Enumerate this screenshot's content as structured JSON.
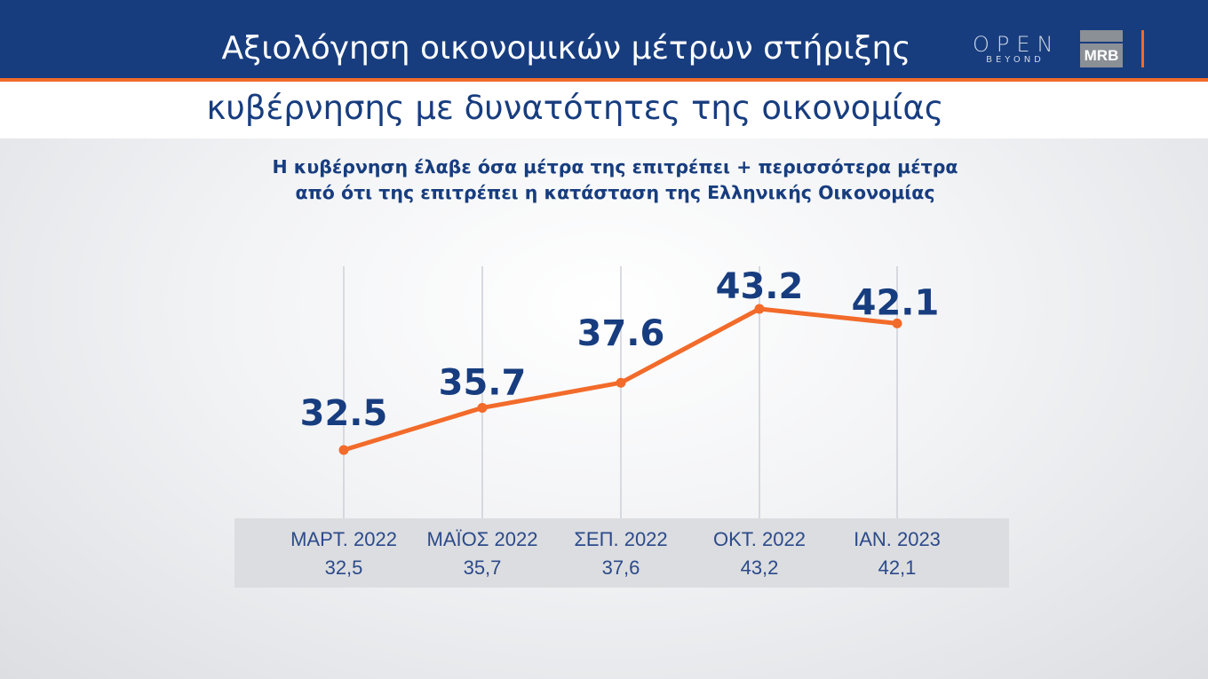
{
  "header": {
    "title_line1": "Αξιολόγηση οικονομικών μέτρων στήριξης",
    "title_line2": "κυβέρνησης με δυνατότητες της οικονομίας",
    "logo_open": "OPEN",
    "logo_open_sub": "BEYOND",
    "logo_mrb": "MRB"
  },
  "colors": {
    "navy": "#173d7f",
    "orange": "#f26b2a"
  },
  "chart_data": {
    "type": "line",
    "title": "Η κυβέρνηση έλαβε όσα μέτρα της επιτρέπει + περισσότερα μέτρα",
    "subtitle": "από ότι της επιτρέπει η κατάσταση της Ελληνικής Οικονομίας",
    "categories": [
      "ΜΑΡΤ. 2022",
      "ΜΑΪΟΣ 2022",
      "ΣΕΠ. 2022",
      "ΟΚΤ. 2022",
      "ΙΑΝ. 2023"
    ],
    "values": [
      32.5,
      35.7,
      37.6,
      43.2,
      42.1
    ],
    "data_labels": [
      "32.5",
      "35.7",
      "37.6",
      "43.2",
      "42.1"
    ],
    "table_values": [
      "32,5",
      "35,7",
      "37,6",
      "43,2",
      "42,1"
    ],
    "grid": "vertical"
  }
}
